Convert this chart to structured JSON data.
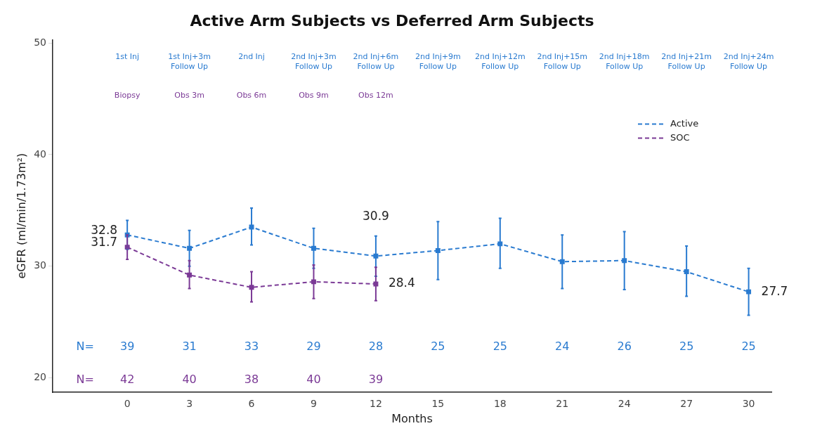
{
  "chart_data": {
    "type": "line",
    "title": "Active Arm Subjects vs Deferred Arm Subjects",
    "xlabel": "Months",
    "ylabel": "eGFR (ml/min/1.73m²)",
    "x": [
      0,
      3,
      6,
      9,
      12,
      15,
      18,
      21,
      24,
      27,
      30
    ],
    "series": [
      {
        "name": "Active",
        "color": "#2a7bd0",
        "values": [
          32.8,
          31.6,
          33.5,
          31.6,
          30.9,
          31.4,
          32.0,
          30.4,
          30.5,
          29.5,
          27.7
        ],
        "errors": [
          [
            31.5,
            34.1
          ],
          [
            30.0,
            33.2
          ],
          [
            31.9,
            35.2
          ],
          [
            29.8,
            33.4
          ],
          [
            29.1,
            32.7
          ],
          [
            28.8,
            34.0
          ],
          [
            29.8,
            34.3
          ],
          [
            28.0,
            32.8
          ],
          [
            27.9,
            33.1
          ],
          [
            27.3,
            31.8
          ],
          [
            25.6,
            29.8
          ]
        ],
        "value_labels": [
          "32.8",
          null,
          null,
          null,
          "30.9",
          null,
          null,
          null,
          null,
          null,
          "27.7"
        ]
      },
      {
        "name": "SOC",
        "x": [
          0,
          3,
          6,
          9,
          12
        ],
        "color": "#7b3a96",
        "values": [
          31.7,
          29.2,
          28.1,
          28.6,
          28.4
        ],
        "errors": [
          [
            30.6,
            32.8
          ],
          [
            28.0,
            30.5
          ],
          [
            26.8,
            29.5
          ],
          [
            27.1,
            30.1
          ],
          [
            26.9,
            29.9
          ]
        ],
        "value_labels": [
          "31.7",
          null,
          null,
          null,
          "28.4"
        ]
      }
    ],
    "xlim": [
      -3.6,
      31.1
    ],
    "xticks": [
      0,
      3,
      6,
      9,
      12,
      15,
      18,
      21,
      24,
      27,
      30
    ],
    "ylim": [
      18.7,
      50.3
    ],
    "yticks": [
      20,
      30,
      40,
      50
    ],
    "grid": false,
    "legend": "top right",
    "marker": "square",
    "line_style": "dashed",
    "annotations": [
      "1st Inj",
      "1st Inj+3m\nFollow Up",
      "2nd Inj",
      "2nd Inj+3m\nFollow Up",
      "2nd Inj+6m\nFollow Up",
      "2nd Inj+9m\nFollow Up",
      "2nd Inj+12m\nFollow Up",
      "2nd Inj+15m\nFollow Up",
      "2nd Inj+18m\nFollow Up",
      "2nd Inj+21m\nFollow Up",
      "2nd Inj+24m\nFollow Up",
      "Biopsy",
      "Obs 3m",
      "Obs 6m",
      "Obs 9m",
      "Obs 12m",
      "N=",
      "39",
      "31",
      "33",
      "29",
      "28",
      "25",
      "25",
      "24",
      "26",
      "25",
      "25",
      "N=",
      "42",
      "40",
      "38",
      "40",
      "39"
    ]
  }
}
